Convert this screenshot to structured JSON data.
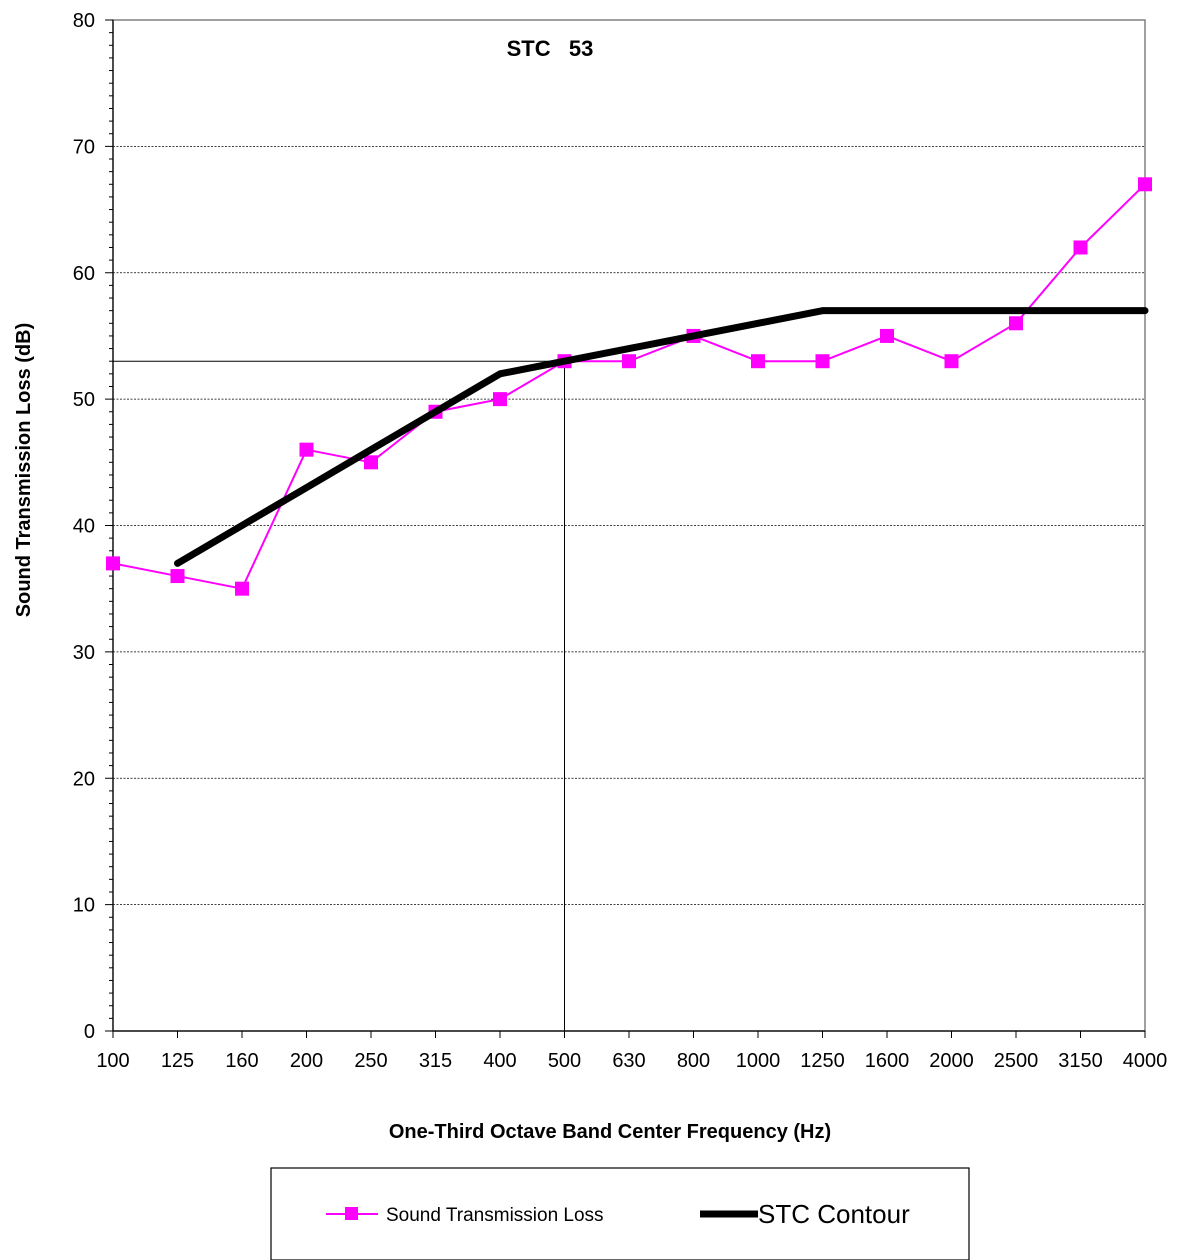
{
  "chart_data": {
    "type": "line",
    "title": "",
    "xlabel": "One-Third Octave Band Center Frequency (Hz)",
    "ylabel": "Sound Transmission Loss (dB)",
    "ylim": [
      0,
      80
    ],
    "yticks": [
      0,
      10,
      20,
      30,
      40,
      50,
      60,
      70,
      80
    ],
    "categories": [
      "100",
      "125",
      "160",
      "200",
      "250",
      "315",
      "400",
      "500",
      "630",
      "800",
      "1000",
      "1250",
      "1600",
      "2000",
      "2500",
      "3150",
      "4000"
    ],
    "annotation": "STC   53",
    "reference_level": 53,
    "reference_category": "500",
    "grid": "horizontal dashed",
    "legend_position": "bottom",
    "series": [
      {
        "name": "Sound Transmission Loss",
        "color": "#ff00ff",
        "marker": "square",
        "values": [
          37,
          36,
          35,
          46,
          45,
          49,
          50,
          53,
          53,
          55,
          53,
          53,
          55,
          53,
          56,
          62,
          67
        ]
      },
      {
        "name": "STC Contour",
        "color": "#000000",
        "marker": "none",
        "values": [
          null,
          37,
          40,
          43,
          46,
          49,
          52,
          53,
          54,
          55,
          56,
          57,
          57,
          57,
          57,
          57,
          57
        ]
      }
    ]
  }
}
